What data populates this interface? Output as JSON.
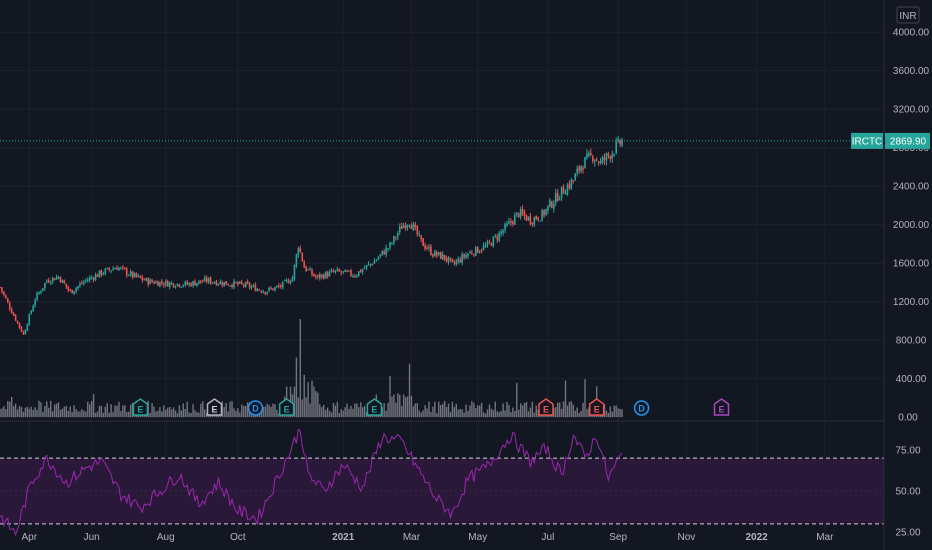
{
  "currency_button": "INR",
  "colors": {
    "background": "#131722",
    "grid": "#1e2230",
    "up": "#26a69a",
    "down": "#ef5350",
    "volume": "#8a8d96",
    "rsi_line": "#9c27b0",
    "rsi_band": "#2a1838",
    "price_line": "#26a69a"
  },
  "chart_data": [
    {
      "type": "candlestick",
      "symbol_label": "IRCTC",
      "last_price": "2869.90",
      "y_ticks": [
        "400.00",
        "800.00",
        "1200.00",
        "1600.00",
        "2000.00",
        "2400.00",
        "2800.00",
        "3200.00",
        "3600.00",
        "4000.00"
      ],
      "ylim": [
        -40,
        4230
      ],
      "x_ticks": [
        "Apr",
        "Jun",
        "Aug",
        "Oct",
        "2021",
        "Mar",
        "May",
        "Jul",
        "Sep",
        "Nov",
        "2022",
        "Mar"
      ],
      "close_path": [
        {
          "i": 0,
          "v": 1350
        },
        {
          "i": 6,
          "v": 1100
        },
        {
          "i": 12,
          "v": 860
        },
        {
          "i": 18,
          "v": 1230
        },
        {
          "i": 24,
          "v": 1420
        },
        {
          "i": 30,
          "v": 1460
        },
        {
          "i": 36,
          "v": 1300
        },
        {
          "i": 44,
          "v": 1420
        },
        {
          "i": 52,
          "v": 1500
        },
        {
          "i": 60,
          "v": 1560
        },
        {
          "i": 68,
          "v": 1470
        },
        {
          "i": 76,
          "v": 1410
        },
        {
          "i": 86,
          "v": 1390
        },
        {
          "i": 96,
          "v": 1380
        },
        {
          "i": 106,
          "v": 1420
        },
        {
          "i": 116,
          "v": 1390
        },
        {
          "i": 126,
          "v": 1370
        },
        {
          "i": 136,
          "v": 1310
        },
        {
          "i": 144,
          "v": 1360
        },
        {
          "i": 150,
          "v": 1450
        },
        {
          "i": 153,
          "v": 1790
        },
        {
          "i": 156,
          "v": 1560
        },
        {
          "i": 162,
          "v": 1450
        },
        {
          "i": 172,
          "v": 1510
        },
        {
          "i": 182,
          "v": 1480
        },
        {
          "i": 192,
          "v": 1620
        },
        {
          "i": 200,
          "v": 1780
        },
        {
          "i": 206,
          "v": 1980
        },
        {
          "i": 210,
          "v": 2040
        },
        {
          "i": 216,
          "v": 1820
        },
        {
          "i": 222,
          "v": 1700
        },
        {
          "i": 228,
          "v": 1660
        },
        {
          "i": 232,
          "v": 1580
        },
        {
          "i": 240,
          "v": 1700
        },
        {
          "i": 250,
          "v": 1780
        },
        {
          "i": 260,
          "v": 1980
        },
        {
          "i": 266,
          "v": 2120
        },
        {
          "i": 272,
          "v": 2050
        },
        {
          "i": 278,
          "v": 2100
        },
        {
          "i": 286,
          "v": 2300
        },
        {
          "i": 294,
          "v": 2460
        },
        {
          "i": 298,
          "v": 2620
        },
        {
          "i": 304,
          "v": 2720
        },
        {
          "i": 308,
          "v": 2640
        },
        {
          "i": 314,
          "v": 2760
        },
        {
          "i": 319,
          "v": 2870
        }
      ]
    },
    {
      "type": "bar",
      "name": "Volume",
      "y_ticks": [
        "0.00",
        "400.00",
        "800.00",
        "1200.00"
      ],
      "peaks": [
        {
          "i": 6,
          "v": 210
        },
        {
          "i": 20,
          "v": 170
        },
        {
          "i": 48,
          "v": 240
        },
        {
          "i": 148,
          "v": 110
        },
        {
          "i": 152,
          "v": 620
        },
        {
          "i": 154,
          "v": 1020
        },
        {
          "i": 156,
          "v": 440
        },
        {
          "i": 160,
          "v": 380
        },
        {
          "i": 200,
          "v": 430
        },
        {
          "i": 210,
          "v": 555
        },
        {
          "i": 265,
          "v": 355
        },
        {
          "i": 290,
          "v": 380
        },
        {
          "i": 300,
          "v": 395
        },
        {
          "i": 306,
          "v": 320
        }
      ]
    },
    {
      "type": "line",
      "name": "RSI",
      "y_ticks": [
        "25.00",
        "50.00",
        "75.00"
      ],
      "ylim": [
        22,
        92
      ],
      "bands": [
        30,
        70
      ],
      "path": [
        {
          "i": 0,
          "v": 35
        },
        {
          "i": 8,
          "v": 24
        },
        {
          "i": 16,
          "v": 55
        },
        {
          "i": 24,
          "v": 70
        },
        {
          "i": 34,
          "v": 55
        },
        {
          "i": 44,
          "v": 64
        },
        {
          "i": 52,
          "v": 68
        },
        {
          "i": 62,
          "v": 48
        },
        {
          "i": 72,
          "v": 40
        },
        {
          "i": 82,
          "v": 50
        },
        {
          "i": 92,
          "v": 60
        },
        {
          "i": 102,
          "v": 42
        },
        {
          "i": 112,
          "v": 55
        },
        {
          "i": 122,
          "v": 38
        },
        {
          "i": 132,
          "v": 33
        },
        {
          "i": 140,
          "v": 52
        },
        {
          "i": 148,
          "v": 72
        },
        {
          "i": 154,
          "v": 88
        },
        {
          "i": 158,
          "v": 60
        },
        {
          "i": 166,
          "v": 50
        },
        {
          "i": 176,
          "v": 66
        },
        {
          "i": 186,
          "v": 52
        },
        {
          "i": 196,
          "v": 83
        },
        {
          "i": 206,
          "v": 80
        },
        {
          "i": 214,
          "v": 64
        },
        {
          "i": 224,
          "v": 45
        },
        {
          "i": 232,
          "v": 36
        },
        {
          "i": 240,
          "v": 57
        },
        {
          "i": 250,
          "v": 65
        },
        {
          "i": 262,
          "v": 84
        },
        {
          "i": 272,
          "v": 68
        },
        {
          "i": 280,
          "v": 76
        },
        {
          "i": 288,
          "v": 60
        },
        {
          "i": 294,
          "v": 84
        },
        {
          "i": 300,
          "v": 70
        },
        {
          "i": 306,
          "v": 84
        },
        {
          "i": 312,
          "v": 58
        },
        {
          "i": 319,
          "v": 72
        }
      ]
    }
  ],
  "events": [
    {
      "type": "E",
      "i": 72,
      "kind": "teal"
    },
    {
      "type": "E",
      "i": 110,
      "kind": "gray"
    },
    {
      "type": "D",
      "i": 131,
      "kind": "blue"
    },
    {
      "type": "E",
      "i": 147,
      "kind": "teal"
    },
    {
      "type": "E",
      "i": 192,
      "kind": "teal"
    },
    {
      "type": "E",
      "i": 280,
      "kind": "red"
    },
    {
      "type": "E",
      "i": 306,
      "kind": "red"
    },
    {
      "type": "D",
      "i": 329,
      "kind": "blue"
    },
    {
      "type": "E",
      "i": 370,
      "kind": "purple"
    }
  ]
}
